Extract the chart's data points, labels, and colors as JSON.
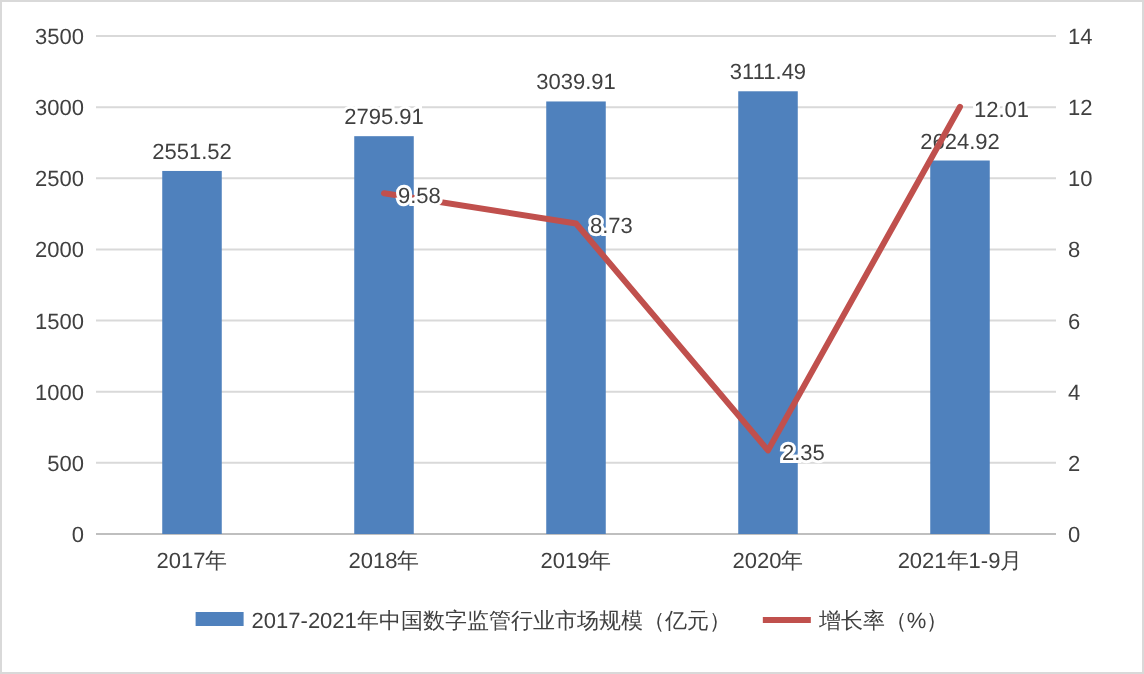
{
  "chart_data": {
    "type": "bar",
    "categories": [
      "2017年",
      "2018年",
      "2019年",
      "2020年",
      "2021年1-9月"
    ],
    "series": [
      {
        "name": "2017-2021年中国数字监管行业市场规模（亿元）",
        "color": "#4f81bd",
        "values": [
          2551.52,
          2795.91,
          3039.91,
          3111.49,
          2624.92
        ]
      },
      {
        "name": "增长率（%）",
        "color": "#c0504d",
        "type": "line",
        "axis": "y2",
        "values": [
          null,
          9.58,
          8.73,
          2.35,
          12.01
        ]
      }
    ],
    "ylim": [
      0,
      3500
    ],
    "yticks": [
      0,
      500,
      1000,
      1500,
      2000,
      2500,
      3000,
      3500
    ],
    "y2lim": [
      0,
      14
    ],
    "y2ticks": [
      0,
      2,
      4,
      6,
      8,
      10,
      12,
      14
    ],
    "grid": "y",
    "legend": "bottom",
    "data_labels": true,
    "marker": "none",
    "line_style": "solid"
  }
}
